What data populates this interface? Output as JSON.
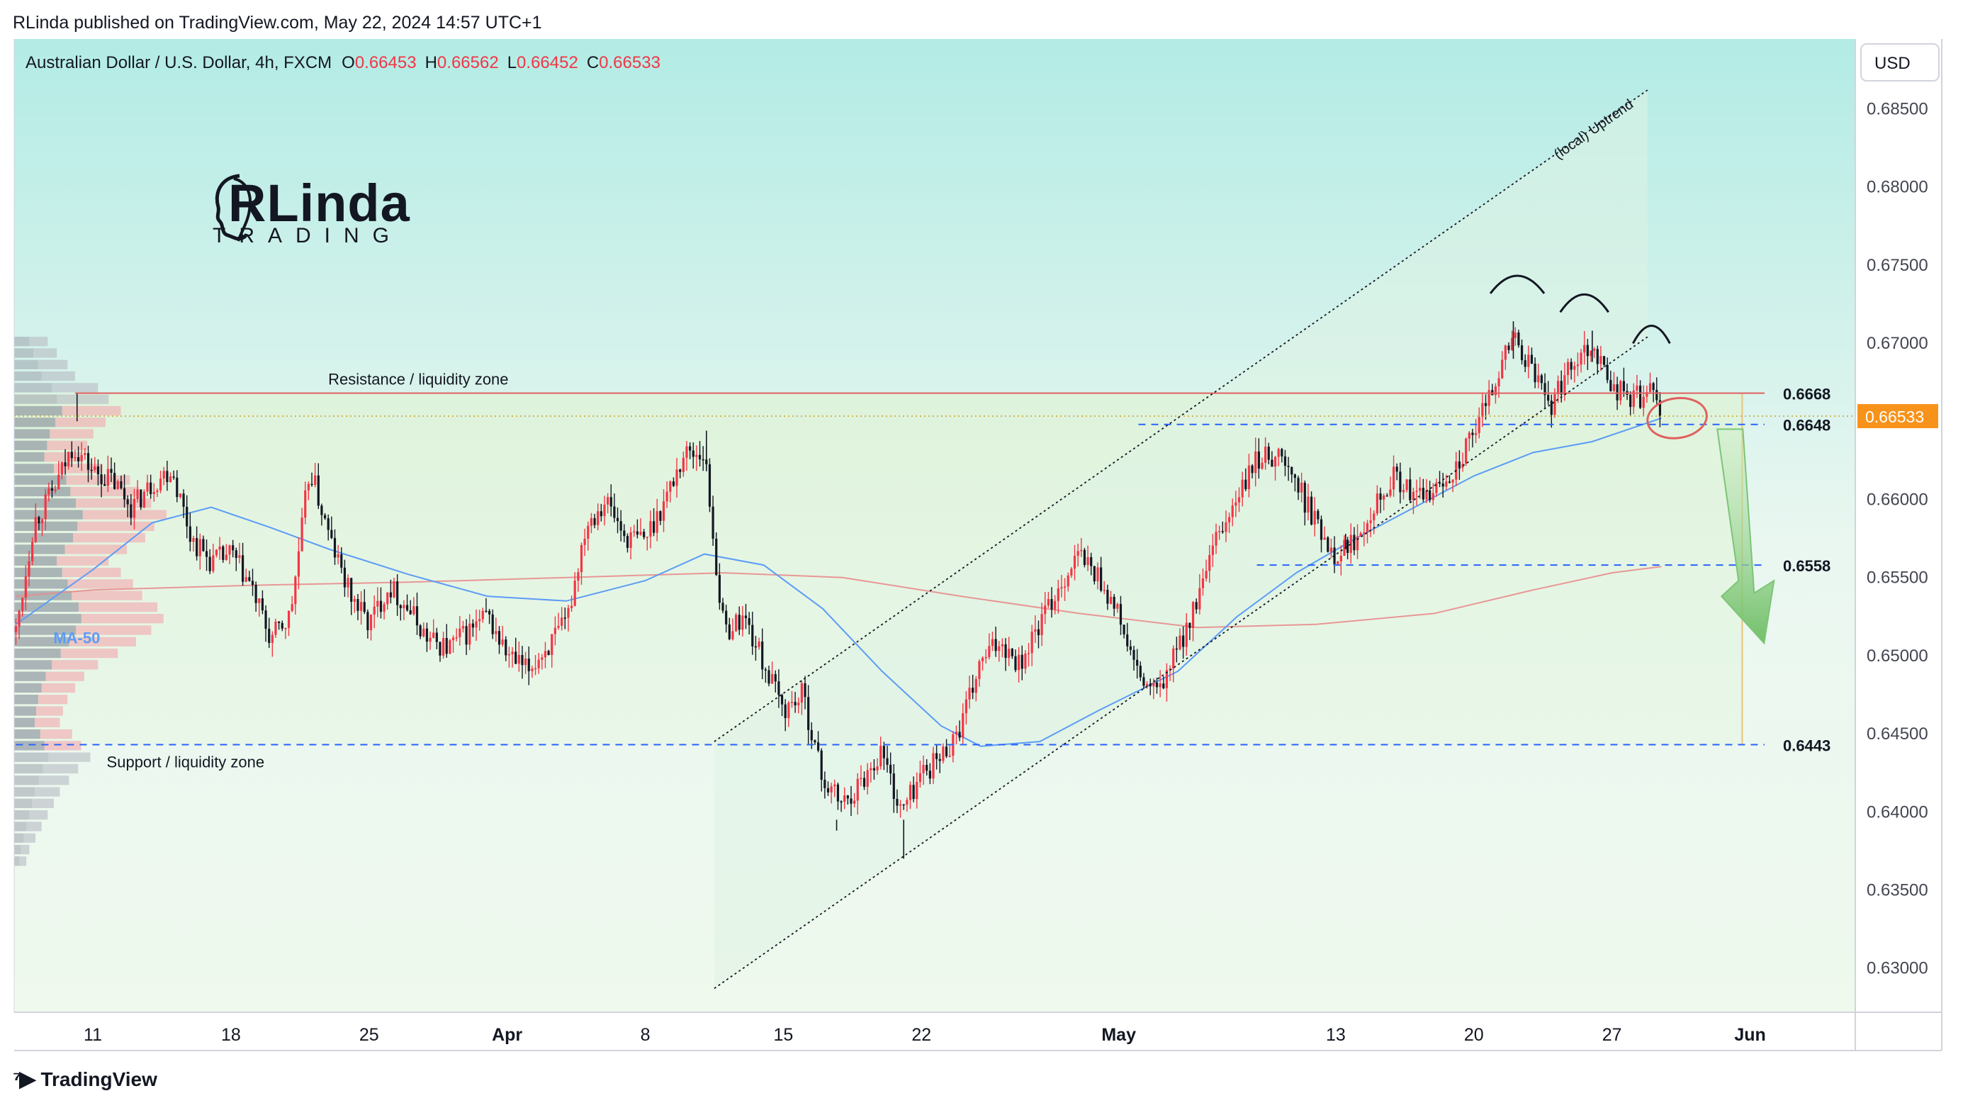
{
  "header": {
    "published": "RLinda published on TradingView.com, May 22, 2024 14:57 UTC+1"
  },
  "legend": {
    "symbol": "Australian Dollar / U.S. Dollar, 4h, FXCM",
    "o_label": "O",
    "o_value": "0.66453",
    "h_label": "H",
    "h_value": "0.66562",
    "l_label": "L",
    "l_value": "0.66452",
    "c_label": "C",
    "c_value": "0.66533"
  },
  "logo": {
    "name": "RLinda",
    "sub": "TRADING"
  },
  "currency_button": "USD",
  "footer": {
    "brand": "TradingView"
  },
  "colors": {
    "bull": "#f23645",
    "bear": "#131722",
    "ma50": "#5b9cf6",
    "ma200": "#e88d8d",
    "resistance": "#e06060",
    "dashed_level": "#2962ff",
    "price_tag": "#f7931a",
    "arrow": "#7cc576",
    "bg_top": "#b3ebe5",
    "bg_bottom": "#eff9ee"
  },
  "chart_data": {
    "type": "candlestick",
    "y_axis": {
      "min": 0.626,
      "max": 0.6865,
      "ticks": [
        "0.68500",
        "0.68000",
        "0.67500",
        "0.67000",
        "0.66000",
        "0.65500",
        "0.65000",
        "0.64500",
        "0.64000",
        "0.63500",
        "0.63000"
      ]
    },
    "x_axis": {
      "labels": [
        {
          "label": "11",
          "day": 0
        },
        {
          "label": "18",
          "day": 7
        },
        {
          "label": "25",
          "day": 14
        },
        {
          "label": "Apr",
          "day": 21,
          "bold": true
        },
        {
          "label": "8",
          "day": 28
        },
        {
          "label": "15",
          "day": 35
        },
        {
          "label": "22",
          "day": 42
        },
        {
          "label": "May",
          "day": 52,
          "bold": true
        },
        {
          "label": "13",
          "day": 63
        },
        {
          "label": "20",
          "day": 70
        },
        {
          "label": "27",
          "day": 77
        },
        {
          "label": "Jun",
          "day": 84,
          "bold": true
        }
      ]
    },
    "price_path": [
      {
        "day": -3.9,
        "price": 0.6515
      },
      {
        "day": -3.0,
        "price": 0.6585
      },
      {
        "day": -2.0,
        "price": 0.6605
      },
      {
        "day": -1.0,
        "price": 0.6635
      },
      {
        "day": 0.0,
        "price": 0.6618
      },
      {
        "day": 1.0,
        "price": 0.6612
      },
      {
        "day": 2.0,
        "price": 0.6595
      },
      {
        "day": 3.0,
        "price": 0.661
      },
      {
        "day": 4.0,
        "price": 0.662
      },
      {
        "day": 5.0,
        "price": 0.6575
      },
      {
        "day": 6.0,
        "price": 0.656
      },
      {
        "day": 7.0,
        "price": 0.6565
      },
      {
        "day": 8.0,
        "price": 0.6545
      },
      {
        "day": 9.0,
        "price": 0.651
      },
      {
        "day": 10.0,
        "price": 0.6525
      },
      {
        "day": 11.0,
        "price": 0.662
      },
      {
        "day": 12.0,
        "price": 0.6575
      },
      {
        "day": 13.0,
        "price": 0.654
      },
      {
        "day": 14.0,
        "price": 0.652
      },
      {
        "day": 15.0,
        "price": 0.6545
      },
      {
        "day": 16.0,
        "price": 0.653
      },
      {
        "day": 17.0,
        "price": 0.651
      },
      {
        "day": 18.0,
        "price": 0.6505
      },
      {
        "day": 19.0,
        "price": 0.6515
      },
      {
        "day": 20.0,
        "price": 0.6525
      },
      {
        "day": 21.0,
        "price": 0.65
      },
      {
        "day": 22.0,
        "price": 0.649
      },
      {
        "day": 23.0,
        "price": 0.6505
      },
      {
        "day": 24.0,
        "price": 0.652
      },
      {
        "day": 25.0,
        "price": 0.6585
      },
      {
        "day": 26.0,
        "price": 0.66
      },
      {
        "day": 27.0,
        "price": 0.6575
      },
      {
        "day": 28.0,
        "price": 0.6575
      },
      {
        "day": 29.0,
        "price": 0.66
      },
      {
        "day": 30.0,
        "price": 0.663
      },
      {
        "day": 31.0,
        "price": 0.663
      },
      {
        "day": 31.7,
        "price": 0.6545
      },
      {
        "day": 32.0,
        "price": 0.6515
      },
      {
        "day": 33.0,
        "price": 0.6525
      },
      {
        "day": 34.0,
        "price": 0.6495
      },
      {
        "day": 35.0,
        "price": 0.6465
      },
      {
        "day": 36.0,
        "price": 0.6475
      },
      {
        "day": 37.0,
        "price": 0.642
      },
      {
        "day": 38.0,
        "price": 0.6405
      },
      {
        "day": 39.0,
        "price": 0.642
      },
      {
        "day": 40.0,
        "price": 0.644
      },
      {
        "day": 40.8,
        "price": 0.6405
      },
      {
        "day": 41.0,
        "price": 0.64
      },
      {
        "day": 42.0,
        "price": 0.6425
      },
      {
        "day": 43.0,
        "price": 0.6435
      },
      {
        "day": 44.0,
        "price": 0.6455
      },
      {
        "day": 45.0,
        "price": 0.6495
      },
      {
        "day": 46.0,
        "price": 0.651
      },
      {
        "day": 47.0,
        "price": 0.6495
      },
      {
        "day": 48.0,
        "price": 0.652
      },
      {
        "day": 49.0,
        "price": 0.6545
      },
      {
        "day": 50.0,
        "price": 0.6565
      },
      {
        "day": 51.0,
        "price": 0.655
      },
      {
        "day": 52.0,
        "price": 0.6525
      },
      {
        "day": 53.0,
        "price": 0.6485
      },
      {
        "day": 54.0,
        "price": 0.6475
      },
      {
        "day": 55.0,
        "price": 0.6505
      },
      {
        "day": 56.0,
        "price": 0.6535
      },
      {
        "day": 57.0,
        "price": 0.6575
      },
      {
        "day": 58.0,
        "price": 0.66
      },
      {
        "day": 59.0,
        "price": 0.6625
      },
      {
        "day": 60.0,
        "price": 0.663
      },
      {
        "day": 61.0,
        "price": 0.661
      },
      {
        "day": 62.0,
        "price": 0.6585
      },
      {
        "day": 63.0,
        "price": 0.6565
      },
      {
        "day": 64.0,
        "price": 0.6575
      },
      {
        "day": 65.0,
        "price": 0.66
      },
      {
        "day": 66.0,
        "price": 0.6615
      },
      {
        "day": 67.0,
        "price": 0.66
      },
      {
        "day": 68.0,
        "price": 0.6605
      },
      {
        "day": 69.0,
        "price": 0.662
      },
      {
        "day": 70.0,
        "price": 0.664
      },
      {
        "day": 71.0,
        "price": 0.6675
      },
      {
        "day": 72.0,
        "price": 0.6705
      },
      {
        "day": 73.0,
        "price": 0.668
      },
      {
        "day": 74.0,
        "price": 0.666
      },
      {
        "day": 75.0,
        "price": 0.669
      },
      {
        "day": 76.0,
        "price": 0.67
      },
      {
        "day": 77.0,
        "price": 0.6672
      },
      {
        "day": 78.0,
        "price": 0.6665
      },
      {
        "day": 79.0,
        "price": 0.6668
      },
      {
        "day": 79.5,
        "price": 0.6653
      }
    ],
    "ma50": [
      {
        "day": -3.9,
        "price": 0.652
      },
      {
        "day": 0.0,
        "price": 0.6555
      },
      {
        "day": 3.0,
        "price": 0.6585
      },
      {
        "day": 6.0,
        "price": 0.6595
      },
      {
        "day": 9.0,
        "price": 0.6582
      },
      {
        "day": 12.0,
        "price": 0.6568
      },
      {
        "day": 16.0,
        "price": 0.6552
      },
      {
        "day": 20.0,
        "price": 0.6538
      },
      {
        "day": 24.0,
        "price": 0.6535
      },
      {
        "day": 28.0,
        "price": 0.6548
      },
      {
        "day": 31.0,
        "price": 0.6565
      },
      {
        "day": 34.0,
        "price": 0.6558
      },
      {
        "day": 37.0,
        "price": 0.653
      },
      {
        "day": 40.0,
        "price": 0.649
      },
      {
        "day": 43.0,
        "price": 0.6455
      },
      {
        "day": 45.0,
        "price": 0.6442
      },
      {
        "day": 48.0,
        "price": 0.6445
      },
      {
        "day": 51.0,
        "price": 0.6465
      },
      {
        "day": 55.0,
        "price": 0.649
      },
      {
        "day": 58.0,
        "price": 0.6525
      },
      {
        "day": 61.0,
        "price": 0.6553
      },
      {
        "day": 64.0,
        "price": 0.6575
      },
      {
        "day": 67.0,
        "price": 0.6595
      },
      {
        "day": 70.0,
        "price": 0.6615
      },
      {
        "day": 73.0,
        "price": 0.663
      },
      {
        "day": 76.0,
        "price": 0.6637
      },
      {
        "day": 79.5,
        "price": 0.6652
      }
    ],
    "ma200": [
      {
        "day": -3.9,
        "price": 0.6538
      },
      {
        "day": 0.0,
        "price": 0.6542
      },
      {
        "day": 8.0,
        "price": 0.6545
      },
      {
        "day": 16.0,
        "price": 0.6547
      },
      {
        "day": 24.0,
        "price": 0.655
      },
      {
        "day": 32.0,
        "price": 0.6553
      },
      {
        "day": 38.0,
        "price": 0.655
      },
      {
        "day": 44.0,
        "price": 0.6538
      },
      {
        "day": 50.0,
        "price": 0.6527
      },
      {
        "day": 56.0,
        "price": 0.6518
      },
      {
        "day": 62.0,
        "price": 0.652
      },
      {
        "day": 68.0,
        "price": 0.6527
      },
      {
        "day": 73.0,
        "price": 0.6542
      },
      {
        "day": 77.0,
        "price": 0.6553
      },
      {
        "day": 79.5,
        "price": 0.6557
      }
    ],
    "levels": [
      {
        "price": 0.6668,
        "label": "0.6668",
        "style": "solid-resistance",
        "start_day": -0.9
      },
      {
        "price": 0.6648,
        "label": "0.6648",
        "style": "dashed",
        "start_day": 53.0
      },
      {
        "price": 0.6558,
        "label": "0.6558",
        "style": "dashed",
        "start_day": 59.0
      },
      {
        "price": 0.6443,
        "label": "0.6443",
        "style": "dashed",
        "start_day": -3.9
      }
    ],
    "current_price": {
      "price": 0.66533,
      "label": "0.66533"
    },
    "zones": {
      "resistance_label": "Resistance / liquidity zone",
      "support_label": "Support / liquidity zone"
    },
    "channel": {
      "label": "(local) Uptrend",
      "lower": [
        {
          "day": 31.5,
          "price": 0.6287
        },
        {
          "day": 78.8,
          "price": 0.6704
        }
      ],
      "upper": [
        {
          "day": 31.5,
          "price": 0.6445
        },
        {
          "day": 78.8,
          "price": 0.6862
        }
      ]
    },
    "ma_label": "MA-50",
    "volume_profile": [
      0.22,
      0.28,
      0.35,
      0.4,
      0.55,
      0.62,
      0.7,
      0.6,
      0.52,
      0.48,
      0.44,
      0.58,
      0.76,
      0.82,
      0.9,
      1.0,
      0.92,
      0.86,
      0.74,
      0.62,
      0.7,
      0.78,
      0.84,
      0.94,
      0.98,
      0.9,
      0.8,
      0.68,
      0.55,
      0.46,
      0.4,
      0.35,
      0.32,
      0.3,
      0.38,
      0.44,
      0.5,
      0.42,
      0.36,
      0.3,
      0.26,
      0.22,
      0.18,
      0.14,
      0.1,
      0.08
    ]
  }
}
